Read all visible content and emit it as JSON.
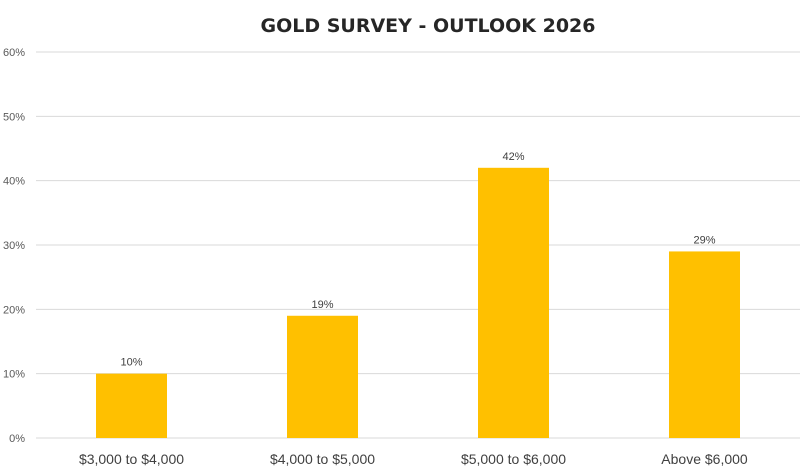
{
  "chart_data": {
    "type": "bar",
    "title": "GOLD SURVEY - OUTLOOK 2026",
    "xlabel": "",
    "ylabel": "",
    "categories": [
      "$3,000 to $4,000",
      "$4,000 to $5,000",
      "$5,000 to $6,000",
      "Above $6,000"
    ],
    "values": [
      10,
      19,
      42,
      29
    ],
    "data_labels": [
      "10%",
      "19%",
      "42%",
      "29%"
    ],
    "ylim": [
      0,
      60
    ],
    "yticks": [
      0,
      10,
      20,
      30,
      40,
      50,
      60
    ],
    "ytick_labels": [
      "0%",
      "10%",
      "20%",
      "30%",
      "40%",
      "50%",
      "60%"
    ],
    "grid": true,
    "legend": "none",
    "bar_color": "#FFC000"
  }
}
